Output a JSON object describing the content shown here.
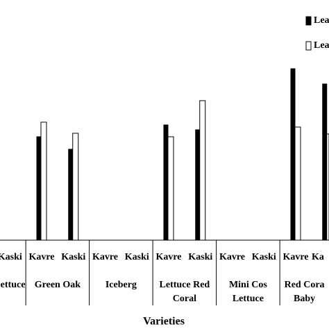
{
  "chart_data": {
    "type": "bar",
    "x_label": "Varieties",
    "categories": [
      "Kaski",
      "Kavre",
      "Kaski",
      "Kavre",
      "Kaski",
      "Kavre",
      "Kaski",
      "Kavre",
      "Kaski",
      "Kavre",
      "Ka"
    ],
    "groups": [
      {
        "lines": [
          "ettuce"
        ],
        "size": 1
      },
      {
        "lines": [
          "Green Oak"
        ],
        "size": 2
      },
      {
        "lines": [
          "Iceberg"
        ],
        "size": 2
      },
      {
        "lines": [
          "Lettuce Red",
          "Coral"
        ],
        "size": 2
      },
      {
        "lines": [
          "Mini Cos",
          "Lettuce"
        ],
        "size": 2
      },
      {
        "lines": [
          "Red Cora",
          "Baby"
        ],
        "size": 2
      }
    ],
    "series": [
      {
        "name": "Lea",
        "color": "#000000",
        "values": [
          0,
          149,
          131,
          0,
          0,
          166,
          159,
          0,
          0,
          247,
          225
        ]
      },
      {
        "name": "Lea",
        "color": "#ffffff",
        "values": [
          0,
          170,
          154,
          0,
          0,
          149,
          201,
          0,
          0,
          163,
          153
        ]
      }
    ],
    "ylim": [
      0,
      346
    ]
  }
}
